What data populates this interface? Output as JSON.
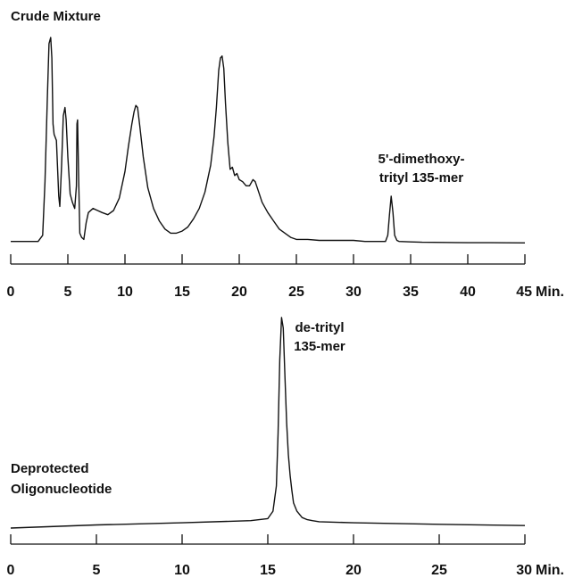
{
  "chart_data": [
    {
      "type": "line",
      "title": "Crude Mixture",
      "xlabel": "",
      "ylabel": "",
      "x_unit_label": "Min.",
      "xlim": [
        0,
        45
      ],
      "ylim": [
        0,
        1
      ],
      "x_ticks": [
        0,
        5,
        10,
        15,
        20,
        25,
        30,
        35,
        40,
        45
      ],
      "x_tick_labels": [
        "0",
        "5",
        "10",
        "15",
        "20",
        "25",
        "30",
        "35",
        "40",
        "45"
      ],
      "grid": false,
      "annotations": [
        {
          "line1": "5'-dimethoxy-",
          "line2": "trityl 135-mer",
          "x": 33.3
        }
      ],
      "series": [
        {
          "x": [
            0,
            2.4,
            2.8,
            3.0,
            3.2,
            3.35,
            3.5,
            3.6,
            3.7,
            3.8,
            4.0,
            4.2,
            4.3,
            4.45,
            4.6,
            4.75,
            4.85,
            5.0,
            5.2,
            5.4,
            5.6,
            5.75,
            5.8,
            5.85,
            5.95,
            6.05,
            6.2,
            6.4,
            6.6,
            6.8,
            7.2,
            7.6,
            8.0,
            8.5,
            9.0,
            9.5,
            10.0,
            10.3,
            10.6,
            10.8,
            10.95,
            11.1,
            11.3,
            11.6,
            12.0,
            12.5,
            13.0,
            13.5,
            14.0,
            14.5,
            15.0,
            15.5,
            16.0,
            16.5,
            17.0,
            17.5,
            17.8,
            18.0,
            18.2,
            18.35,
            18.5,
            18.65,
            18.8,
            19.0,
            19.2,
            19.4,
            19.6,
            19.8,
            20.0,
            20.3,
            20.6,
            20.9,
            21.2,
            21.4,
            21.7,
            22.0,
            22.5,
            23.0,
            23.5,
            24.0,
            24.5,
            25.0,
            26.0,
            27.0,
            28.0,
            29.0,
            30.0,
            31.0,
            32.0,
            32.8,
            33.0,
            33.15,
            33.3,
            33.45,
            33.6,
            33.8,
            34.0,
            35.0,
            36.0,
            38.0,
            40.0,
            42.0,
            45.0
          ],
          "y": [
            0.01,
            0.01,
            0.04,
            0.3,
            0.7,
            0.97,
            1.0,
            0.9,
            0.58,
            0.53,
            0.5,
            0.23,
            0.18,
            0.38,
            0.62,
            0.66,
            0.6,
            0.42,
            0.24,
            0.2,
            0.17,
            0.28,
            0.58,
            0.6,
            0.3,
            0.05,
            0.03,
            0.02,
            0.1,
            0.15,
            0.17,
            0.16,
            0.15,
            0.14,
            0.16,
            0.22,
            0.35,
            0.47,
            0.58,
            0.64,
            0.67,
            0.66,
            0.57,
            0.42,
            0.27,
            0.17,
            0.11,
            0.07,
            0.05,
            0.05,
            0.06,
            0.08,
            0.12,
            0.17,
            0.25,
            0.38,
            0.52,
            0.66,
            0.84,
            0.9,
            0.91,
            0.85,
            0.68,
            0.49,
            0.36,
            0.37,
            0.33,
            0.34,
            0.31,
            0.3,
            0.28,
            0.28,
            0.31,
            0.3,
            0.25,
            0.2,
            0.15,
            0.11,
            0.07,
            0.05,
            0.03,
            0.02,
            0.02,
            0.015,
            0.015,
            0.015,
            0.015,
            0.01,
            0.01,
            0.01,
            0.04,
            0.14,
            0.23,
            0.15,
            0.04,
            0.015,
            0.01,
            0.008,
            0.006,
            0.005,
            0.004,
            0.004,
            0.003
          ]
        }
      ]
    },
    {
      "type": "line",
      "title": "",
      "xlabel": "",
      "ylabel": "",
      "x_unit_label": "Min.",
      "xlim": [
        0,
        30
      ],
      "ylim": [
        0,
        1
      ],
      "x_ticks": [
        0,
        5,
        10,
        15,
        20,
        25,
        30
      ],
      "x_tick_labels": [
        "0",
        "5",
        "10",
        "15",
        "20",
        "25",
        "30"
      ],
      "grid": false,
      "annotations": [
        {
          "line1": "de-trityl",
          "line2": "135-mer",
          "x": 16.0
        },
        {
          "line1": "Deprotected",
          "line2": "Oligonucleotide",
          "x": 0.2
        }
      ],
      "series": [
        {
          "x": [
            0,
            5,
            10,
            14,
            15.0,
            15.3,
            15.5,
            15.6,
            15.7,
            15.8,
            15.9,
            16.0,
            16.1,
            16.2,
            16.3,
            16.4,
            16.5,
            16.7,
            17.0,
            17.3,
            17.6,
            18.0,
            20.0,
            25.0,
            30.0
          ],
          "y": [
            0.0,
            0.015,
            0.025,
            0.035,
            0.045,
            0.08,
            0.2,
            0.45,
            0.8,
            1.0,
            0.95,
            0.72,
            0.5,
            0.35,
            0.25,
            0.18,
            0.12,
            0.08,
            0.05,
            0.04,
            0.035,
            0.03,
            0.025,
            0.018,
            0.012
          ]
        }
      ]
    }
  ]
}
